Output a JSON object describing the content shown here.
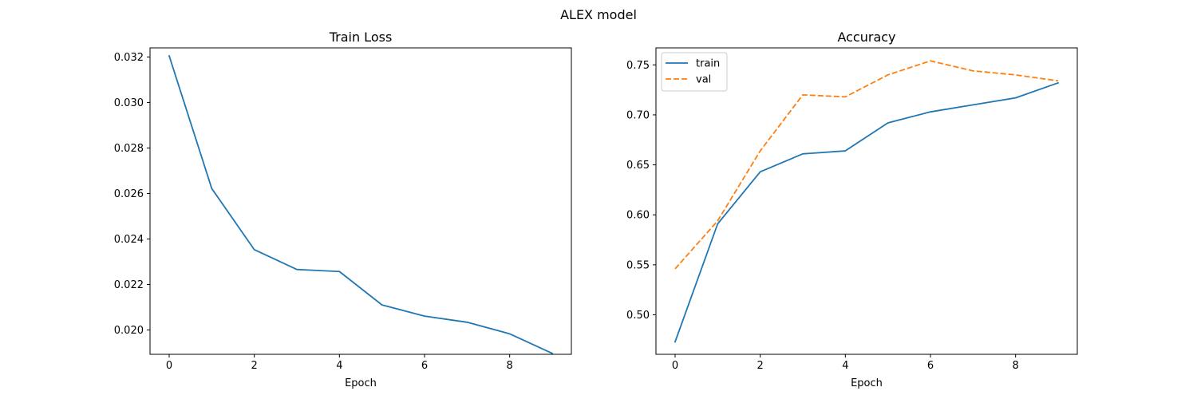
{
  "suptitle": "ALEX model",
  "chart_data": [
    {
      "type": "line",
      "title": "Train Loss",
      "xlabel": "Epoch",
      "ylabel": "",
      "x": [
        0,
        1,
        2,
        3,
        4,
        5,
        6,
        7,
        8,
        9
      ],
      "xlim": [
        -0.45,
        9.45
      ],
      "ylim": [
        0.01893,
        0.0324
      ],
      "xticks": [
        0,
        2,
        4,
        6,
        8
      ],
      "yticks": [
        0.02,
        0.022,
        0.024,
        0.026,
        0.028,
        0.03,
        0.032
      ],
      "ytick_decimals": 3,
      "grid": false,
      "series": [
        {
          "name": "",
          "color": "#1f77b4",
          "dash": "solid",
          "values": [
            0.03205,
            0.02622,
            0.02353,
            0.02266,
            0.02257,
            0.0211,
            0.02061,
            0.02034,
            0.01983,
            0.01897
          ]
        }
      ]
    },
    {
      "type": "line",
      "title": "Accuracy",
      "xlabel": "Epoch",
      "ylabel": "",
      "x": [
        0,
        1,
        2,
        3,
        4,
        5,
        6,
        7,
        8,
        9
      ],
      "xlim": [
        -0.45,
        9.45
      ],
      "ylim": [
        0.4605,
        0.767
      ],
      "xticks": [
        0,
        2,
        4,
        6,
        8
      ],
      "yticks": [
        0.5,
        0.55,
        0.6,
        0.65,
        0.7,
        0.75
      ],
      "ytick_decimals": 2,
      "grid": false,
      "legend": "upper-left",
      "series": [
        {
          "name": "train",
          "color": "#1f77b4",
          "dash": "solid",
          "values": [
            0.473,
            0.591,
            0.643,
            0.661,
            0.664,
            0.692,
            0.703,
            0.71,
            0.717,
            0.732
          ]
        },
        {
          "name": "val",
          "color": "#ff7f0e",
          "dash": "dashed",
          "values": [
            0.546,
            0.594,
            0.664,
            0.72,
            0.718,
            0.74,
            0.754,
            0.744,
            0.74,
            0.734
          ]
        }
      ]
    }
  ]
}
